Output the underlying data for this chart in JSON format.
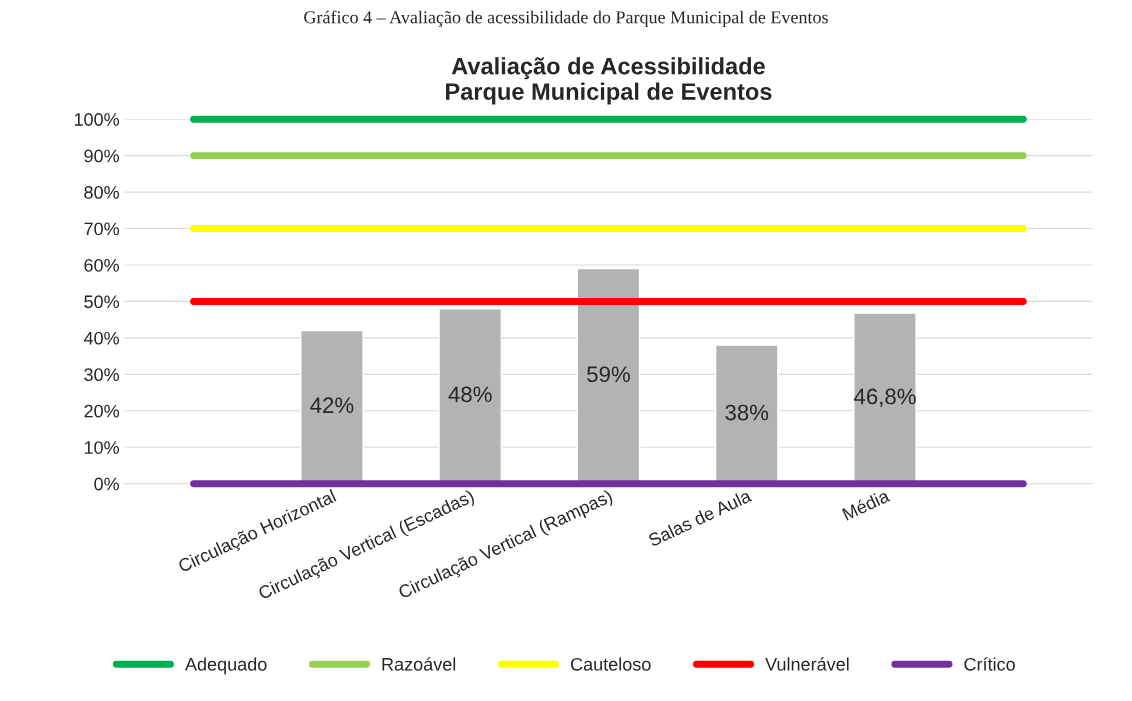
{
  "chart_data": {
    "type": "bar",
    "title": "Avaliação de Acessibilidade\nParque Municipal de Eventos",
    "annotations": [
      "Gráfico 4 – Avaliação de acessibilidade do Parque Municipal de Eventos"
    ],
    "categories": [
      null,
      "Circulação Horizontal",
      "Circulação Vertical (Escadas)",
      "Circulação Vertical (Rampas)",
      "Salas de Aula",
      "Média",
      null
    ],
    "series": [
      {
        "color": "#b3b3b3",
        "values": [
          null,
          42,
          48,
          59,
          38,
          46.8,
          null
        ],
        "value_labels": [
          null,
          "42%",
          "48%",
          "59%",
          "38%",
          "46,8%",
          null
        ]
      },
      {
        "type": "line",
        "name": "Adequado",
        "color": "#00b050",
        "values": [
          100,
          100,
          100,
          100,
          100,
          100,
          100
        ]
      },
      {
        "type": "line",
        "name": "Razoável",
        "color": "#92d050",
        "values": [
          90,
          90,
          90,
          90,
          90,
          90,
          90
        ]
      },
      {
        "type": "line",
        "name": "Cauteloso",
        "color": "#ffff00",
        "values": [
          70,
          70,
          70,
          70,
          70,
          70,
          70
        ]
      },
      {
        "type": "line",
        "name": "Vulnerável",
        "color": "#ff0000",
        "values": [
          50,
          50,
          50,
          50,
          50,
          50,
          50
        ]
      },
      {
        "type": "line",
        "name": "Crítico",
        "color": "#7030a0",
        "values": [
          0,
          0,
          0,
          0,
          0,
          0,
          0
        ]
      }
    ],
    "ylim": [
      0,
      100
    ],
    "yticks": [
      {
        "value": 0,
        "label": "0%"
      },
      {
        "value": 10,
        "label": "10%"
      },
      {
        "value": 20,
        "label": "20%"
      },
      {
        "value": 30,
        "label": "30%"
      },
      {
        "value": 40,
        "label": "40%"
      },
      {
        "value": 50,
        "label": "50%"
      },
      {
        "value": 60,
        "label": "60%"
      },
      {
        "value": 70,
        "label": "70%"
      },
      {
        "value": 80,
        "label": "80%"
      },
      {
        "value": 90,
        "label": "90%"
      },
      {
        "value": 100,
        "label": "100%"
      }
    ],
    "grid": "y",
    "legend": "bottom",
    "marker": "none",
    "line_style": "solid"
  }
}
